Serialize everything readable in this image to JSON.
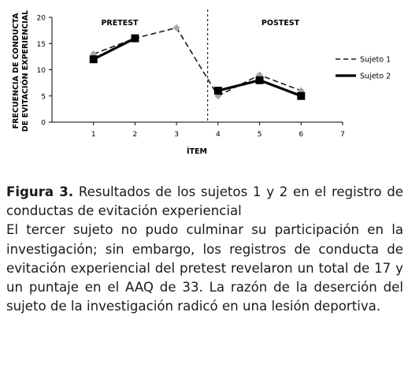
{
  "chart_data": {
    "type": "line",
    "ylabel_line1": "FRECUENCIA DE CONDUCTA",
    "ylabel_line2": "DE EVITACIÓN EXPERIENCIAL",
    "xlabel": "ÍTEM",
    "x_ticks": [
      1,
      2,
      3,
      4,
      5,
      6,
      7
    ],
    "y_ticks": [
      0,
      5,
      10,
      15,
      20
    ],
    "xlim": [
      0,
      7
    ],
    "ylim": [
      0,
      20
    ],
    "phase_labels": [
      "PRETEST",
      "POSTEST"
    ],
    "phase_divider_x": 3.75,
    "series": [
      {
        "name": "Sujeto 1",
        "style": "dashed",
        "marker": "diamond",
        "color": "#1a1a1a",
        "marker_color": "#a6a6a6",
        "segments": [
          [
            {
              "x": 1,
              "y": 13
            },
            {
              "x": 2,
              "y": 16
            },
            {
              "x": 3,
              "y": 18
            },
            {
              "x": 4,
              "y": 5
            }
          ],
          [
            {
              "x": 4,
              "y": 5
            },
            {
              "x": 5,
              "y": 9
            },
            {
              "x": 6,
              "y": 6
            }
          ]
        ]
      },
      {
        "name": "Sujeto 2",
        "style": "solid",
        "marker": "square",
        "color": "#000000",
        "marker_color": "#000000",
        "segments": [
          [
            {
              "x": 1,
              "y": 12
            },
            {
              "x": 2,
              "y": 16
            }
          ],
          [
            {
              "x": 4,
              "y": 6
            },
            {
              "x": 5,
              "y": 8
            },
            {
              "x": 6,
              "y": 5
            }
          ]
        ]
      }
    ],
    "legend_position": "right"
  },
  "caption": {
    "figure_label": "Figura 3.",
    "figure_title": " Resultados de los sujetos 1 y 2 en el registro de conductas de evitación experiencial",
    "body": "El tercer sujeto no pudo culminar su participación en la investigación; sin embargo, los registros de conducta de evitación experiencial del pretest revelaron un total de 17 y un puntaje en el AAQ de 33. La razón de la deserción del sujeto de la investigación radicó en una lesión deportiva."
  }
}
